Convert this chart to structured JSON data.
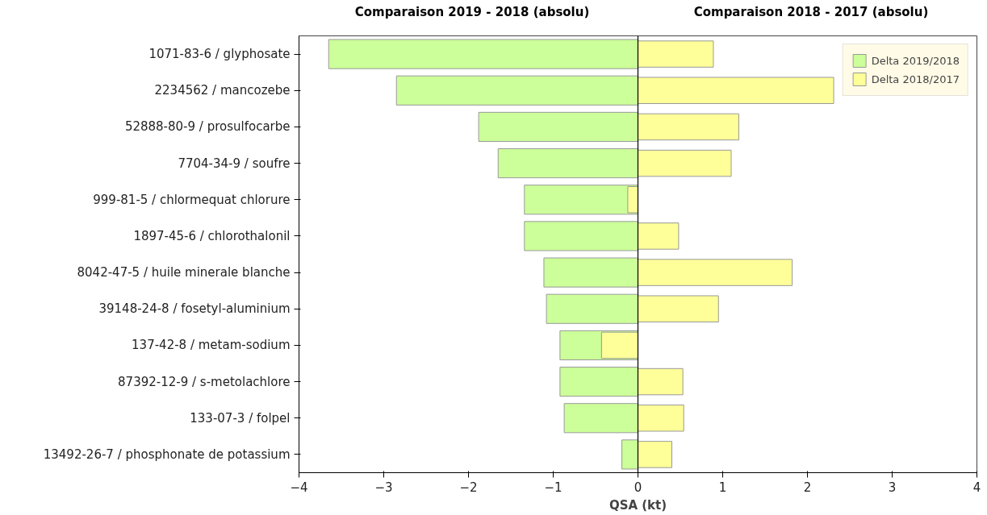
{
  "chart_data": {
    "type": "bar",
    "orientation": "horizontal",
    "annotations": [
      "Comparaison 2019 - 2018 (absolu)",
      "Comparaison 2018 - 2017 (absolu)"
    ],
    "xlabel": "QSA (kt)",
    "categories": [
      "1071-83-6 / glyphosate",
      "2234562 / mancozebe",
      "52888-80-9 / prosulfocarbe",
      "7704-34-9 / soufre",
      "999-81-5 / chlormequat chlorure",
      "1897-45-6 / chlorothalonil",
      "8042-47-5 / huile minerale blanche",
      "39148-24-8 / fosetyl-aluminium",
      "137-42-8 / metam-sodium",
      "87392-12-9 / s-metolachlore",
      "133-07-3 / folpel",
      "13492-26-7 / phosphonate de potassium"
    ],
    "series": [
      {
        "name": "Delta 2019/2018",
        "color": "#ccff99",
        "values": [
          -3.65,
          -2.85,
          -1.88,
          -1.65,
          -1.34,
          -1.34,
          -1.11,
          -1.08,
          -0.92,
          -0.92,
          -0.87,
          -0.19
        ]
      },
      {
        "name": "Delta 2018/2017",
        "color": "#ffff99",
        "values": [
          0.89,
          2.31,
          1.19,
          1.1,
          -0.12,
          0.48,
          1.82,
          0.95,
          -0.43,
          0.53,
          0.54,
          0.4
        ]
      }
    ],
    "xlim": [
      -4,
      4
    ],
    "xticks": [
      {
        "value": -4,
        "label": "−4"
      },
      {
        "value": -3,
        "label": "−3"
      },
      {
        "value": -2,
        "label": "−2"
      },
      {
        "value": -1,
        "label": "−1"
      },
      0,
      1,
      2,
      3,
      4
    ],
    "ref_lines": [
      {
        "axis": "x",
        "value": 0,
        "label": null,
        "color": "#000000"
      }
    ],
    "grid": false,
    "legend": "top right"
  }
}
